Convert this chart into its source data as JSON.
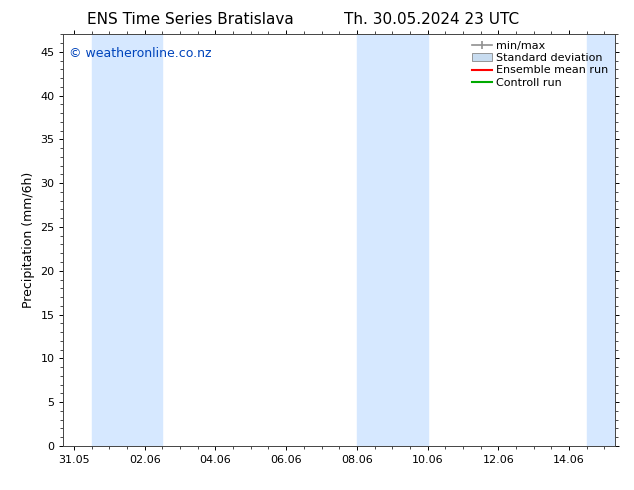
{
  "title_left": "ENS Time Series Bratislava",
  "title_right": "Th. 30.05.2024 23 UTC",
  "ylabel": "Precipitation (mm/6h)",
  "ylim": [
    0,
    47
  ],
  "yticks": [
    0,
    5,
    10,
    15,
    20,
    25,
    30,
    35,
    40,
    45
  ],
  "xlim": [
    -0.3,
    15.3
  ],
  "xtick_labels": [
    "31.05",
    "02.06",
    "04.06",
    "06.06",
    "08.06",
    "10.06",
    "12.06",
    "14.06"
  ],
  "xtick_positions": [
    0,
    2,
    4,
    6,
    8,
    10,
    12,
    14
  ],
  "watermark": "© weatheronline.co.nz",
  "watermark_color": "#0044bb",
  "background_color": "#ffffff",
  "plot_bg_color": "#ffffff",
  "shaded_bands": [
    {
      "xmin": 0.5,
      "xmax": 2.5,
      "color": "#d6e8ff"
    },
    {
      "xmin": 8.0,
      "xmax": 10.0,
      "color": "#d6e8ff"
    },
    {
      "xmin": 14.5,
      "xmax": 16.0,
      "color": "#d6e8ff"
    }
  ],
  "legend_items": [
    {
      "label": "min/max",
      "color": "#909090",
      "type": "errbar"
    },
    {
      "label": "Standard deviation",
      "color": "#c8dcf0",
      "type": "box"
    },
    {
      "label": "Ensemble mean run",
      "color": "#ff0000",
      "type": "line"
    },
    {
      "label": "Controll run",
      "color": "#00aa00",
      "type": "line"
    }
  ],
  "title_fontsize": 11,
  "axis_label_fontsize": 9,
  "tick_fontsize": 8,
  "legend_fontsize": 8,
  "watermark_fontsize": 9
}
